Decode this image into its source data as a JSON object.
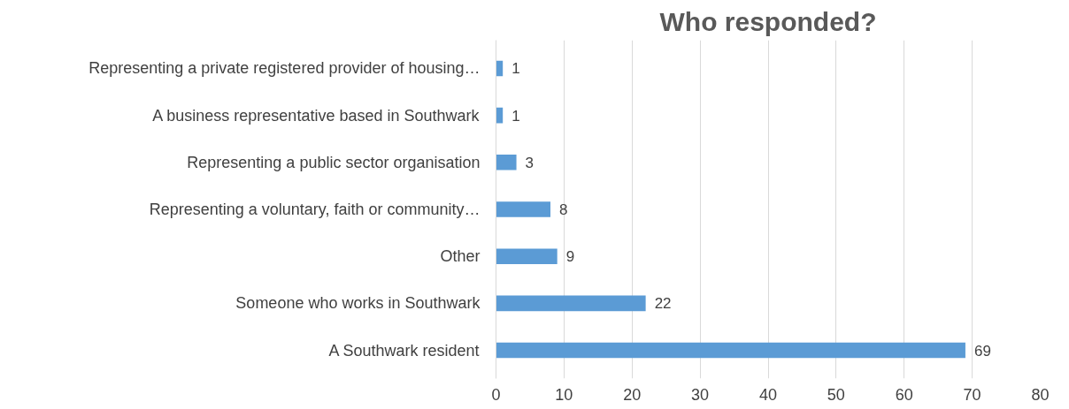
{
  "chart_data": {
    "type": "bar",
    "orientation": "horizontal",
    "title": "Who responded?",
    "categories": [
      "Representing a private registered provider of housing…",
      "A business representative based in Southwark",
      "Representing a public sector organisation",
      "Representing a voluntary, faith or community…",
      "Other",
      "Someone who works in Southwark",
      "A Southwark resident"
    ],
    "values": [
      1,
      1,
      3,
      8,
      9,
      22,
      69
    ],
    "color": "#5b9bd5",
    "xlim": [
      0,
      80
    ],
    "xticks": [
      0,
      10,
      20,
      30,
      40,
      50,
      60,
      70,
      80
    ],
    "grid": "x",
    "data_labels": true
  }
}
